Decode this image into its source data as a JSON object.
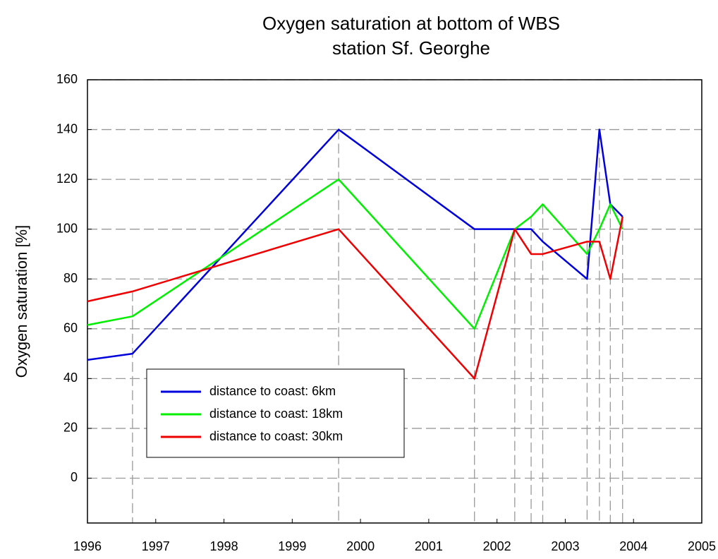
{
  "chart_data": {
    "type": "line",
    "title": [
      "Oxygen saturation at bottom of WBS",
      "station Sf. Georghe"
    ],
    "y_label": "Oxygen saturation [%]",
    "x": [
      1996.0,
      1996.66,
      1999.68,
      2001.67,
      2002.26,
      2002.5,
      2002.67,
      2003.32,
      2003.5,
      2003.66,
      2003.84
    ],
    "series": [
      {
        "name": "distance to coast: 6km",
        "color": "#0000dd",
        "values": [
          47.5,
          50,
          140,
          100,
          100,
          100,
          95,
          80,
          140,
          110,
          105
        ]
      },
      {
        "name": "distance to coast: 18km",
        "color": "#00ee00",
        "values": [
          61.5,
          65,
          120,
          60,
          100,
          105,
          110,
          90,
          100,
          110,
          100
        ]
      },
      {
        "name": "distance to coast: 30km",
        "color": "#ee0000",
        "values": [
          71,
          75,
          100,
          40,
          100,
          90,
          90,
          95,
          95,
          80,
          105
        ]
      }
    ],
    "xlim": [
      1996,
      2005
    ],
    "xticks": [
      1996,
      1997,
      1998,
      1999,
      2000,
      2001,
      2002,
      2003,
      2004,
      2005
    ],
    "ylim": [
      -18,
      160
    ],
    "yticks": [
      0,
      20,
      40,
      60,
      80,
      100,
      120,
      140,
      160
    ],
    "grid": true,
    "legend": "lower left"
  }
}
